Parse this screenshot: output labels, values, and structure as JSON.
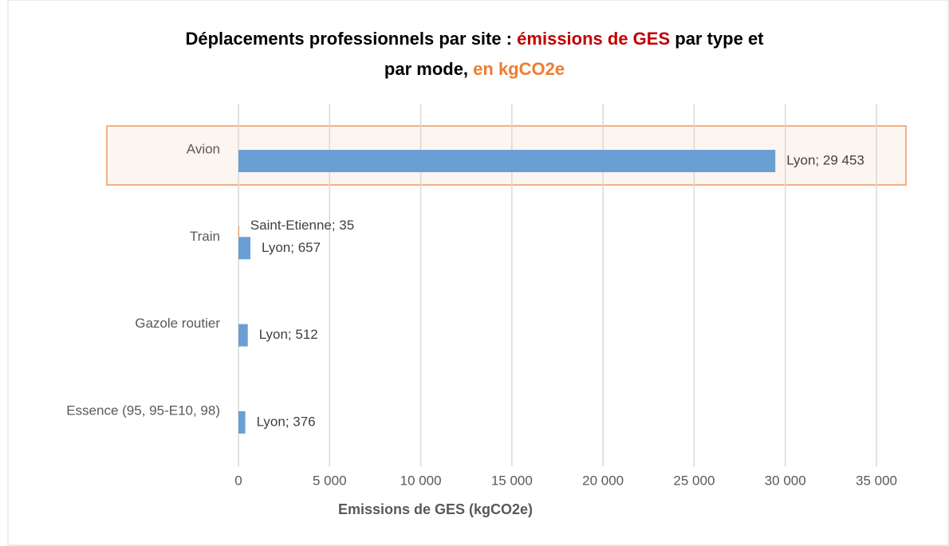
{
  "chart_data": {
    "type": "hbar",
    "title_lines": [
      [
        {
          "text": "Déplacements professionnels par site : ",
          "color": "#000000"
        },
        {
          "text": "émissions de GES",
          "color": "#c00000"
        },
        {
          "text": " par type et",
          "color": "#000000"
        }
      ],
      [
        {
          "text": "par mode, ",
          "color": "#000000"
        },
        {
          "text": "en kgCO2e",
          "color": "#ed7d31"
        }
      ]
    ],
    "categories": [
      "Avion",
      "Train",
      "Gazole routier",
      "Essence (95, 95-E10, 98)"
    ],
    "series": [
      {
        "name": "Saint-Etienne",
        "color": "#ed7d31",
        "values": [
          null,
          35,
          null,
          null
        ],
        "value_labels": [
          null,
          "Saint-Etienne; 35",
          null,
          null
        ]
      },
      {
        "name": "Lyon",
        "color": "#6a9fd4",
        "values": [
          29453,
          657,
          512,
          376
        ],
        "value_labels": [
          "Lyon; 29 453",
          "Lyon; 657",
          "Lyon; 512",
          "Lyon; 376"
        ]
      }
    ],
    "xlabel": "Emissions de GES (kgCO2e)",
    "xlim": [
      0,
      35000
    ],
    "xticks": [
      0,
      {
        "value": 5000,
        "label": "5 000"
      },
      {
        "value": 10000,
        "label": "10 000"
      },
      {
        "value": 15000,
        "label": "15 000"
      },
      {
        "value": 20000,
        "label": "20 000"
      },
      {
        "value": 25000,
        "label": "25 000"
      },
      {
        "value": 30000,
        "label": "30 000"
      },
      {
        "value": 35000,
        "label": "35 000"
      }
    ],
    "grid": true
  }
}
